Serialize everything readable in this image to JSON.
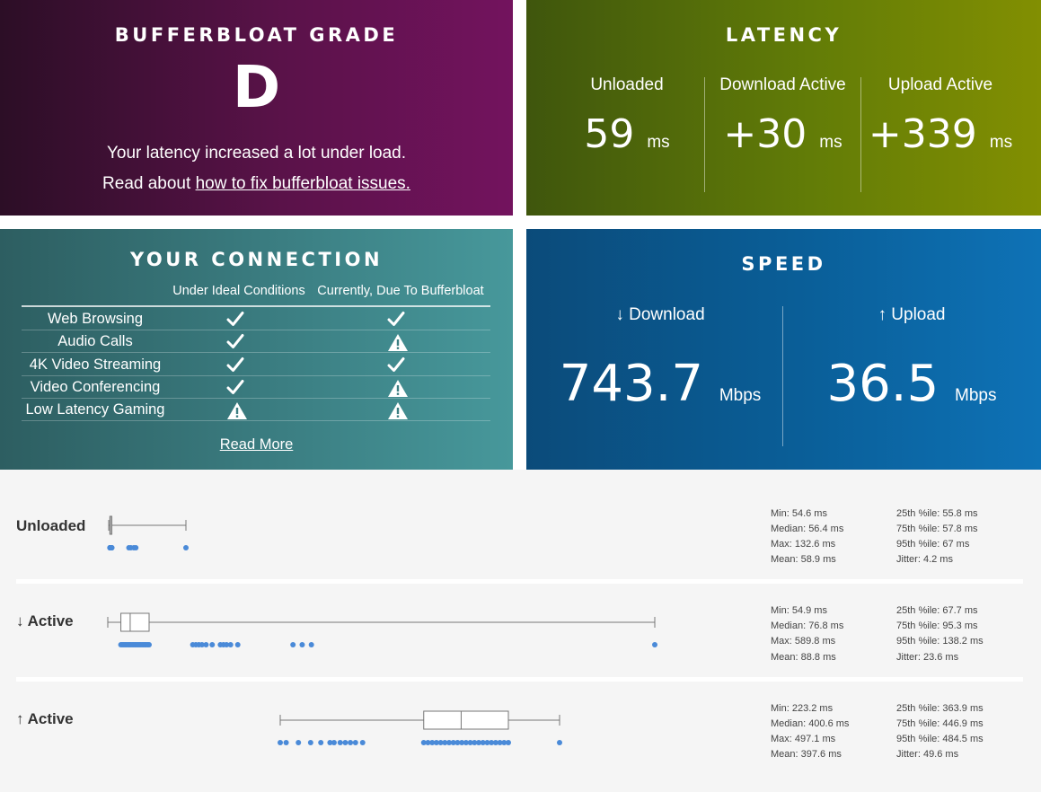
{
  "grade": {
    "title": "BUFFERBLOAT GRADE",
    "letter": "D",
    "line1": "Your latency increased a lot under load.",
    "line2_prefix": "Read about ",
    "line2_link": "how to fix bufferbloat issues."
  },
  "latency": {
    "title": "LATENCY",
    "cols": [
      {
        "label": "Unloaded",
        "value": "59",
        "unit": "ms"
      },
      {
        "label": "Download Active",
        "value": "+30",
        "unit": "ms"
      },
      {
        "label": "Upload Active",
        "value": "+339",
        "unit": "ms"
      }
    ]
  },
  "connection": {
    "title": "YOUR CONNECTION",
    "col1": "Under Ideal Conditions",
    "col2": "Currently, Due To Bufferbloat",
    "rows": [
      {
        "feature": "Web Browsing",
        "ideal": "check",
        "current": "check"
      },
      {
        "feature": "Audio Calls",
        "ideal": "check",
        "current": "warning"
      },
      {
        "feature": "4K Video Streaming",
        "ideal": "check",
        "current": "check"
      },
      {
        "feature": "Video Conferencing",
        "ideal": "check",
        "current": "warning"
      },
      {
        "feature": "Low Latency Gaming",
        "ideal": "warning",
        "current": "warning"
      }
    ],
    "read_more": "Read More"
  },
  "speed": {
    "title": "SPEED",
    "download": {
      "label": "↓ Download",
      "value": "743.7",
      "unit": "Mbps"
    },
    "upload": {
      "label": "↑ Upload",
      "value": "36.5",
      "unit": "Mbps"
    }
  },
  "stats": [
    {
      "label": "Unloaded",
      "left": [
        "Min: 54.6 ms",
        "Median: 56.4 ms",
        "Max: 132.6 ms",
        "Mean: 58.9 ms"
      ],
      "right": [
        "25th %ile: 55.8 ms",
        "75th %ile: 57.8 ms",
        "95th %ile: 67 ms",
        "Jitter: 4.2 ms"
      ],
      "box": {
        "min": 54.6,
        "q1": 55.8,
        "median": 56.4,
        "q3": 57.8,
        "max": 132.6
      },
      "outliers": [
        75,
        77,
        80,
        82,
        132.6
      ]
    },
    {
      "label": "↓ Active",
      "left": [
        "Min: 54.9 ms",
        "Median: 76.8 ms",
        "Max: 589.8 ms",
        "Mean: 88.8 ms"
      ],
      "right": [
        "25th %ile: 67.7 ms",
        "75th %ile: 95.3 ms",
        "95th %ile: 138.2 ms",
        "Jitter: 23.6 ms"
      ],
      "box": {
        "min": 54.9,
        "q1": 67.7,
        "median": 76.8,
        "q3": 95.3,
        "max": 589.8
      },
      "outliers": [
        138,
        141,
        144,
        147,
        151,
        157,
        165,
        168,
        171,
        175,
        182,
        236,
        245,
        254,
        589.8
      ]
    },
    {
      "label": "↑ Active",
      "left": [
        "Min: 223.2 ms",
        "Median: 400.6 ms",
        "Max: 497.1 ms",
        "Mean: 397.6 ms"
      ],
      "right": [
        "25th %ile: 363.9 ms",
        "75th %ile: 446.9 ms",
        "95th %ile: 484.5 ms",
        "Jitter: 49.6 ms"
      ],
      "box": {
        "min": 223.2,
        "q1": 363.9,
        "median": 400.6,
        "q3": 446.9,
        "max": 497.1
      },
      "outliers": [
        223.2,
        229,
        241,
        253,
        263,
        272,
        276,
        282,
        287,
        292,
        297,
        304,
        497.1
      ]
    }
  ]
}
